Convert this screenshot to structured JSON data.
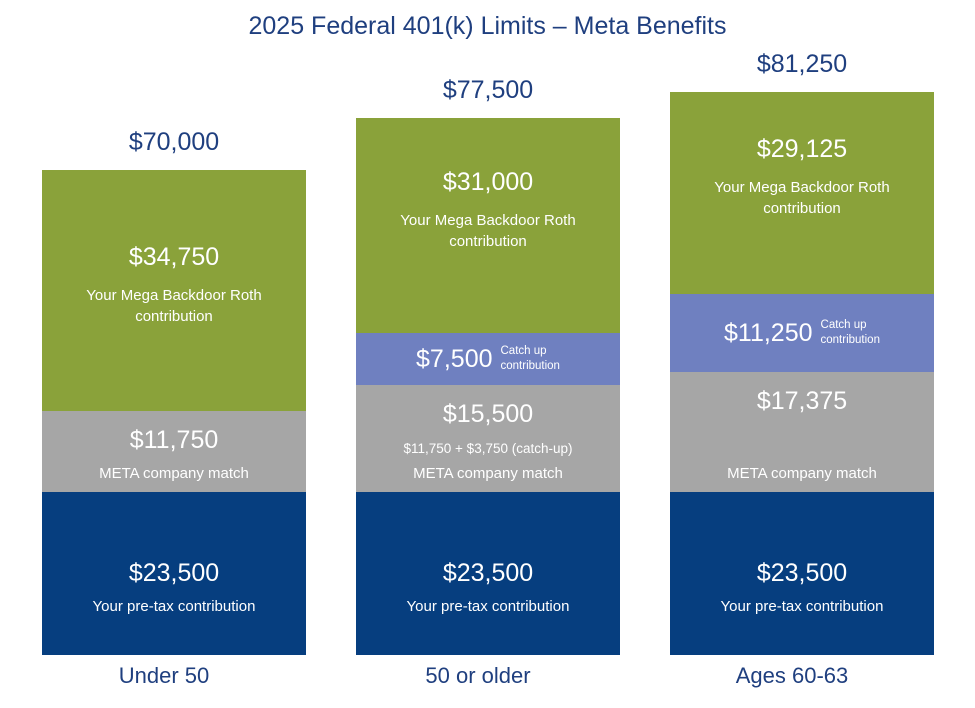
{
  "colors": {
    "mega_backdoor": "#8aa23a",
    "catch_up": "#6f80c0",
    "company_match": "#a6a6a6",
    "pretax": "#063e7f",
    "text_blue": "#1f3f7f"
  },
  "chart_data": {
    "type": "bar",
    "stacked": true,
    "title": "2025 Federal 401(k) Limits – Meta Benefits",
    "categories": [
      "Under 50",
      "50 or older",
      "Ages 60-63"
    ],
    "totals": [
      "$70,000",
      "$77,500",
      "$81,250"
    ],
    "total_values": [
      70000,
      77500,
      81250
    ],
    "series": [
      {
        "name": "Your pre-tax contribution",
        "values": [
          23500,
          23500,
          23500
        ],
        "labels": [
          "$23,500",
          "$23,500",
          "$23,500"
        ],
        "captions": [
          "Your pre-tax contribution",
          "Your pre-tax contribution",
          "Your pre-tax contribution"
        ]
      },
      {
        "name": "META company match",
        "values": [
          11750,
          15500,
          17375
        ],
        "labels": [
          "$11,750",
          "$15,500",
          "$17,375"
        ],
        "captions": [
          "META company match",
          "META company match",
          "META company match"
        ],
        "notes": [
          "",
          "$11,750 + $3,750 (catch-up)",
          ""
        ]
      },
      {
        "name": "Catch up contribution",
        "values": [
          0,
          7500,
          11250
        ],
        "labels": [
          "",
          "$7,500",
          "$11,250"
        ],
        "caption_line1": "Catch up",
        "caption_line2": "contribution"
      },
      {
        "name": "Your Mega Backdoor Roth contribution",
        "values": [
          34750,
          31000,
          29125
        ],
        "labels": [
          "$34,750",
          "$31,000",
          "$29,125"
        ],
        "caption_line1": "Your Mega Backdoor Roth",
        "caption_line2": "contribution"
      }
    ],
    "ylim": [
      0,
      81250
    ],
    "grid": false,
    "legend": "none"
  }
}
